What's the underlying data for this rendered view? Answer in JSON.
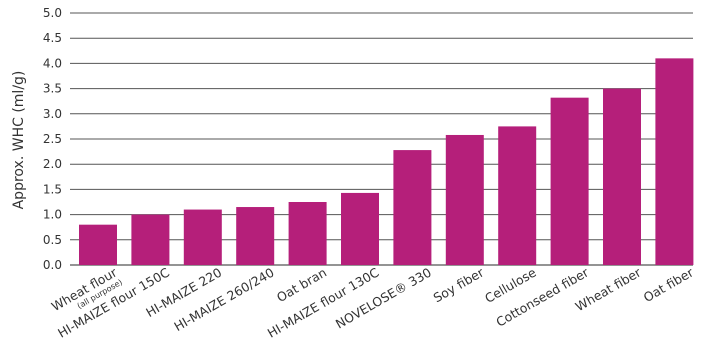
{
  "chart_data": {
    "type": "bar",
    "categories": [
      "Wheat flour",
      "HI-MAIZE flour 150C",
      "HI-MAIZE 220",
      "HI-MAIZE 260/240",
      "Oat bran",
      "HI-MAIZE flour 130C",
      "NOVELOSE® 330",
      "Soy fiber",
      "Cellulose",
      "Cottonseed fiber",
      "Wheat fiber",
      "Oat fiber"
    ],
    "category_notes": [
      "(all purpose)",
      "",
      "",
      "",
      "",
      "",
      "",
      "",
      "",
      "",
      "",
      ""
    ],
    "values": [
      0.8,
      1.0,
      1.1,
      1.15,
      1.25,
      1.43,
      2.28,
      2.58,
      2.75,
      3.32,
      3.5,
      4.1
    ],
    "ylabel": "Approx. WHC (ml/g)",
    "xlabel": "",
    "ylim": [
      0,
      5.0
    ],
    "yticks": [
      "0.0",
      "0.5",
      "1.0",
      "1.5",
      "2.0",
      "2.5",
      "3.0",
      "3.5",
      "4.0",
      "4.5",
      "5.0"
    ],
    "grid": true,
    "bar_color": "#b51f7a",
    "grid_color": "#555555"
  }
}
